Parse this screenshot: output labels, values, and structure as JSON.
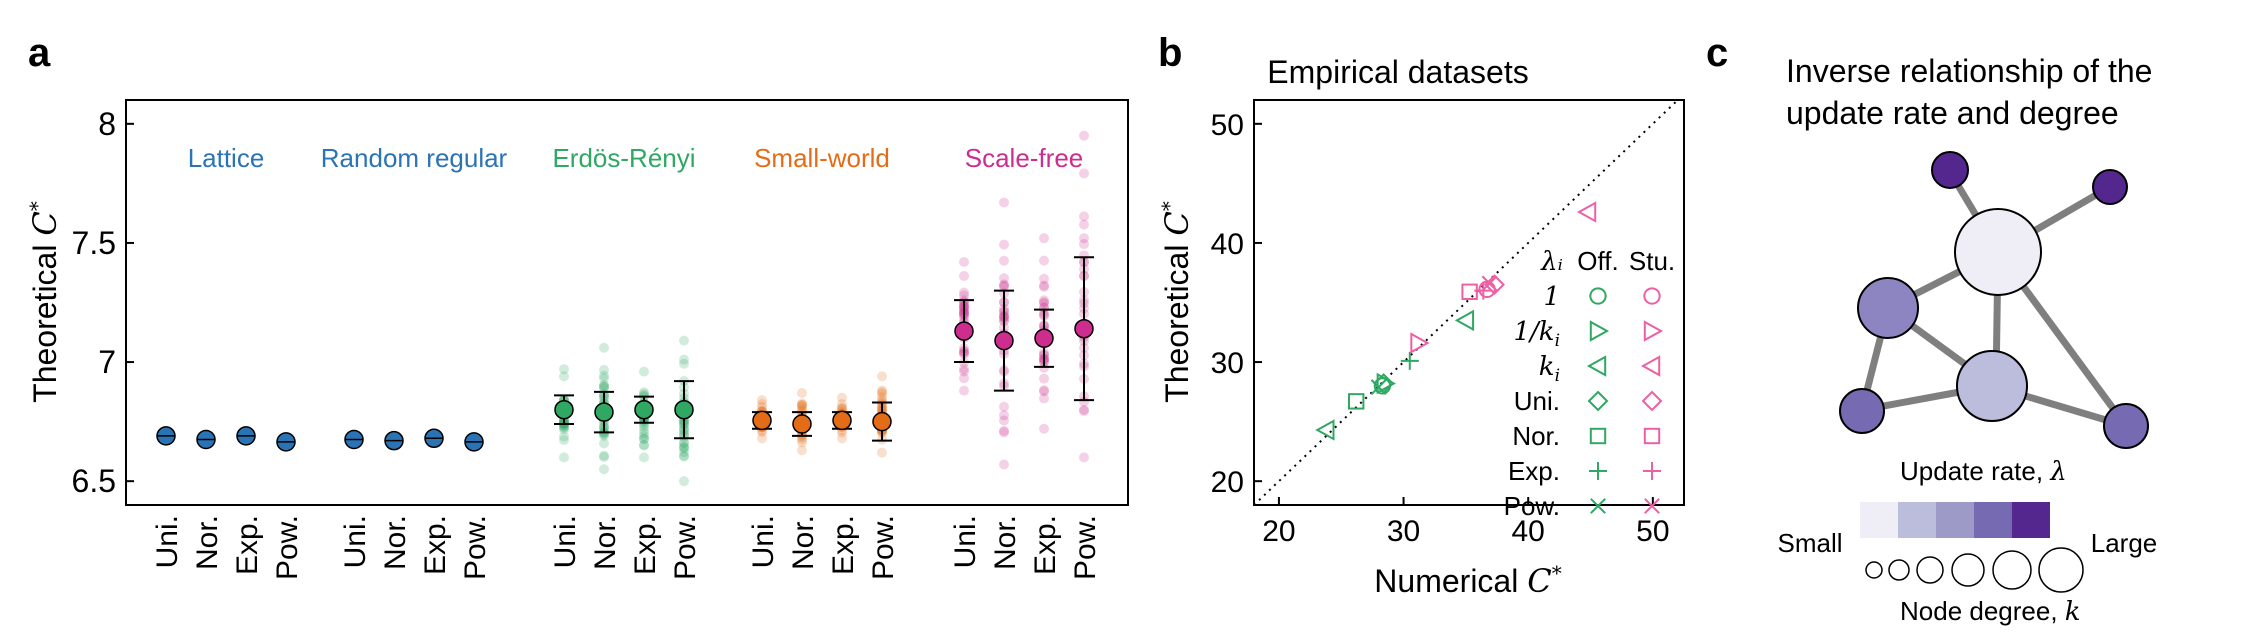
{
  "panels": {
    "a": {
      "letter": "a"
    },
    "b": {
      "letter": "b"
    },
    "c": {
      "letter": "c"
    }
  },
  "chart_data": [
    {
      "id": "a",
      "type": "scatter",
      "ylabel": "Theoretical C*",
      "ylim": [
        6.4,
        8.1
      ],
      "yticks": [
        "6.5",
        "7",
        "7.5",
        "8"
      ],
      "ytick_values": [
        6.5,
        7.0,
        7.5,
        8.0
      ],
      "groups": [
        {
          "name": "Lattice",
          "color": "#2a74b6",
          "categories": [
            "Uni.",
            "Nor.",
            "Exp.",
            "Pow."
          ],
          "means": [
            6.69,
            6.675,
            6.69,
            6.665
          ],
          "err": [
            0,
            0,
            0,
            0
          ],
          "spread": [
            0,
            0,
            0,
            0
          ]
        },
        {
          "name": "Random regular",
          "color": "#2a74b6",
          "categories": [
            "Uni.",
            "Nor.",
            "Exp.",
            "Pow."
          ],
          "means": [
            6.675,
            6.67,
            6.68,
            6.665
          ],
          "err": [
            0,
            0,
            0,
            0
          ],
          "spread": [
            0,
            0,
            0,
            0
          ]
        },
        {
          "name": "Erdös-Rényi",
          "color": "#2ea862",
          "categories": [
            "Uni.",
            "Nor.",
            "Exp.",
            "Pow."
          ],
          "means": [
            6.8,
            6.79,
            6.8,
            6.8
          ],
          "err": [
            0.06,
            0.085,
            0.055,
            0.12
          ],
          "spread": [
            [
              6.6,
              6.97
            ],
            [
              6.55,
              7.06
            ],
            [
              6.6,
              6.96
            ],
            [
              6.5,
              7.09
            ]
          ]
        },
        {
          "name": "Small-world",
          "color": "#e46c17",
          "categories": [
            "Uni.",
            "Nor.",
            "Exp.",
            "Pow."
          ],
          "means": [
            6.755,
            6.74,
            6.755,
            6.75
          ],
          "err": [
            0.035,
            0.05,
            0.035,
            0.08
          ],
          "spread": [
            [
              6.68,
              6.84
            ],
            [
              6.63,
              6.87
            ],
            [
              6.68,
              6.85
            ],
            [
              6.62,
              6.94
            ]
          ]
        },
        {
          "name": "Scale-free",
          "color": "#cc2d8f",
          "categories": [
            "Uni.",
            "Nor.",
            "Exp.",
            "Pow."
          ],
          "means": [
            7.13,
            7.09,
            7.1,
            7.14
          ],
          "err": [
            0.13,
            0.21,
            0.12,
            0.3
          ],
          "spread": [
            [
              6.88,
              7.42
            ],
            [
              6.57,
              7.67
            ],
            [
              6.72,
              7.52
            ],
            [
              6.6,
              7.95
            ]
          ]
        }
      ]
    },
    {
      "id": "b",
      "type": "scatter",
      "title": "Empirical datasets",
      "xlabel": "Numerical C*",
      "ylabel": "Theoretical C*",
      "xlim": [
        18,
        52.5
      ],
      "ylim": [
        18,
        52
      ],
      "xticks": [
        "20",
        "30",
        "40",
        "50"
      ],
      "xtick_values": [
        20,
        30,
        40,
        50
      ],
      "yticks": [
        "20",
        "30",
        "40",
        "50"
      ],
      "ytick_values": [
        20,
        30,
        40,
        50
      ],
      "legend": {
        "col_header_rate": "λ_i",
        "col_off": "Off.",
        "col_stu": "Stu.",
        "rows": [
          {
            "label": "1",
            "math": true,
            "marker": "circle"
          },
          {
            "label": "1/k_i",
            "math": true,
            "marker": "tri-right"
          },
          {
            "label": "k_i",
            "math": true,
            "marker": "tri-left"
          },
          {
            "label": "Uni.",
            "math": false,
            "marker": "diamond"
          },
          {
            "label": "Nor.",
            "math": false,
            "marker": "square"
          },
          {
            "label": "Exp.",
            "math": false,
            "marker": "plus"
          },
          {
            "label": "Pow.",
            "math": false,
            "marker": "x"
          }
        ]
      },
      "series": [
        {
          "name": "Off.",
          "color": "#2ea862",
          "points": [
            {
              "marker": "circle",
              "x": 28.3,
              "y": 28.0
            },
            {
              "marker": "tri-right",
              "x": 28.5,
              "y": 28.2
            },
            {
              "marker": "tri-left",
              "x": 23.8,
              "y": 24.3
            },
            {
              "marker": "tri-left",
              "x": 35.0,
              "y": 33.5
            },
            {
              "marker": "diamond",
              "x": 28.4,
              "y": 28.2
            },
            {
              "marker": "square",
              "x": 26.2,
              "y": 26.7
            },
            {
              "marker": "plus",
              "x": 30.5,
              "y": 30.1
            },
            {
              "marker": "x",
              "x": 28.0,
              "y": 27.9
            }
          ]
        },
        {
          "name": "Stu.",
          "color": "#ee5fa3",
          "points": [
            {
              "marker": "circle",
              "x": 36.7,
              "y": 36.1
            },
            {
              "marker": "tri-right",
              "x": 31.2,
              "y": 31.6
            },
            {
              "marker": "tri-left",
              "x": 44.8,
              "y": 42.6
            },
            {
              "marker": "diamond",
              "x": 37.3,
              "y": 36.5
            },
            {
              "marker": "square",
              "x": 35.3,
              "y": 35.9
            },
            {
              "marker": "plus",
              "x": 36.4,
              "y": 36.0
            },
            {
              "marker": "x",
              "x": 36.9,
              "y": 36.6
            }
          ]
        }
      ]
    }
  ],
  "diagram_c": {
    "title_line1": "Inverse relationship of the",
    "title_line2": "update rate and degree",
    "colorbar_label": "Update rate, λ",
    "small_label": "Small",
    "large_label": "Large",
    "degree_label": "Node degree, k",
    "colorbar_colors": [
      "#efedf6",
      "#bcbddd",
      "#9e9ac8",
      "#766bb2",
      "#54278f"
    ]
  }
}
